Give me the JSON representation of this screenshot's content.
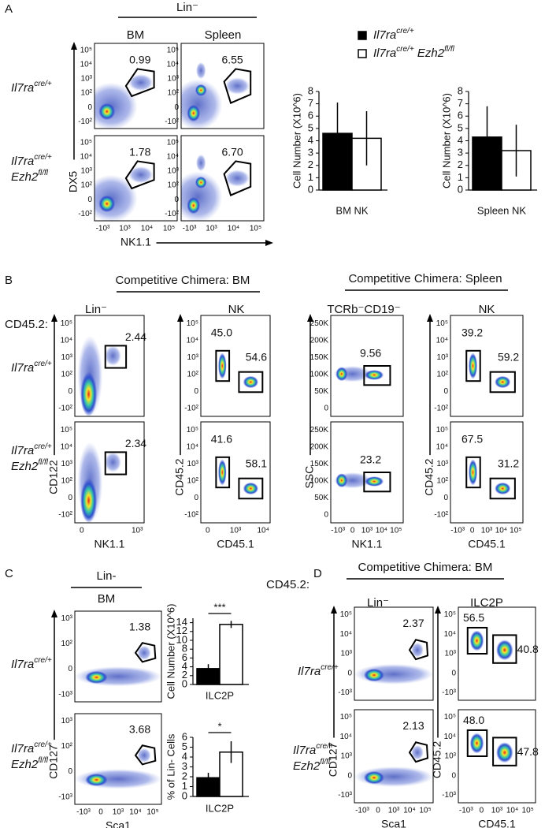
{
  "panel_labels": [
    "A",
    "B",
    "C",
    "D"
  ],
  "headers": [
    "Lin⁻",
    "Competitive Chimera: BM",
    "Competitive Chimera: Spleen",
    "Lin-",
    "Competitive Chimera: BM"
  ],
  "column_titles": [
    "BM",
    "Spleen",
    "Lin⁻",
    "NK",
    "TCRb⁻CD19⁻",
    "NK",
    "BM",
    "Lin⁻",
    "ILC2P"
  ],
  "row_prefix": [
    "CD45.2:",
    "CD45.2:"
  ],
  "legend": [
    [
      [
        "Il7ra",
        "cre/+"
      ]
    ],
    [
      [
        "Il7ra",
        "cre/+"
      ],
      [
        " Ezh2",
        "fl/fl"
      ]
    ]
  ],
  "row_labels": [
    [
      [
        "Il7ra",
        "cre/+"
      ]
    ],
    [
      [
        "Il7ra",
        "cre/+"
      ],
      [
        "Ezh2",
        "fl/fl"
      ]
    ],
    [
      [
        "Il7ra",
        "cre/+"
      ]
    ],
    [
      [
        "Il7ra",
        "cre/+"
      ],
      [
        "Ezh2",
        "fl/fl"
      ]
    ],
    [
      [
        "Il7ra",
        "cre/+"
      ]
    ],
    [
      [
        "Il7ra",
        "cre/+"
      ],
      [
        "Ezh2",
        "fl/fl"
      ]
    ],
    [
      [
        "Il7ra",
        "cre/+"
      ]
    ],
    [
      [
        "Il7ra",
        "cre/+"
      ],
      [
        "Ezh2",
        "fl/fl"
      ]
    ]
  ],
  "flow_columns": [
    {
      "y_label": "DX5",
      "x_label": "NK1.1",
      "yticks": [
        "-10²",
        "0",
        "10²",
        "10³",
        "10⁴",
        "10⁵"
      ],
      "xticks": [
        "-10³",
        "10³",
        "10⁴",
        "10⁵"
      ],
      "plots": [
        {
          "gates": [
            "0.99"
          ]
        },
        {
          "gates": [
            "1.78"
          ]
        }
      ]
    },
    {
      "yticks": [
        "-10²",
        "0",
        "10²",
        "10³",
        "10⁴",
        "10⁵"
      ],
      "xticks": [
        "-10³",
        "10³",
        "10⁴",
        "10⁵"
      ],
      "plots": [
        {
          "gates": [
            "6.55"
          ]
        },
        {
          "gates": [
            "6.70"
          ]
        }
      ]
    },
    {
      "y_label": "CD122",
      "x_label": "NK1.1",
      "yticks": [
        "-10²",
        "0",
        "10²",
        "10³",
        "10⁴",
        "10⁵"
      ],
      "xticks": [
        "0",
        "10³"
      ],
      "plots": [
        {
          "gates": [
            "2.44"
          ]
        },
        {
          "gates": [
            "2.34"
          ]
        }
      ]
    },
    {
      "y_label": "CD45.2",
      "x_label": "CD45.1",
      "yticks": [
        "-10²",
        "0",
        "10²",
        "10³",
        "10⁴",
        "10⁵"
      ],
      "xticks": [
        "0",
        "10³",
        "10⁴"
      ],
      "plots": [
        {
          "gates": [
            "45.0",
            "54.6"
          ]
        },
        {
          "gates": [
            "41.6",
            "58.1"
          ]
        }
      ]
    },
    {
      "y_label": "SSC",
      "x_label": "NK1.1",
      "yticks": [
        "0",
        "50K",
        "100K",
        "150K",
        "200K",
        "250K"
      ],
      "xticks": [
        "-10³",
        "0",
        "10³",
        "10⁴",
        "10⁵"
      ],
      "plots": [
        {
          "gates": [
            "9.56"
          ]
        },
        {
          "gates": [
            "23.2"
          ]
        }
      ]
    },
    {
      "y_label": "CD45.2",
      "x_label": "CD45.1",
      "yticks": [
        "-10²",
        "0",
        "10²",
        "10³",
        "10⁴",
        "10⁵"
      ],
      "xticks": [
        "-10³",
        "0",
        "10³",
        "10⁴",
        "10⁵"
      ],
      "plots": [
        {
          "gates": [
            "39.2",
            "59.2"
          ]
        },
        {
          "gates": [
            "67.5",
            "31.2"
          ]
        }
      ]
    },
    {
      "y_label": "CD127",
      "x_label": "Sca1",
      "yticks": [
        "-10³",
        "0",
        "10²",
        "10³"
      ],
      "xticks": [
        "-10³",
        "0",
        "10³",
        "10⁴",
        "10⁵"
      ],
      "plots": [
        {
          "gates": [
            "1.38"
          ]
        },
        {
          "gates": [
            "3.68"
          ]
        }
      ]
    },
    {
      "y_label": "CD127",
      "x_label": "Sca1",
      "yticks": [
        "-10³",
        "0",
        "10³",
        "10⁴",
        "10⁵"
      ],
      "xticks": [
        "-10³",
        "0",
        "10³",
        "10⁴",
        "10⁵"
      ],
      "plots": [
        {
          "gates": [
            "2.37"
          ]
        },
        {
          "gates": [
            "2.13"
          ]
        }
      ]
    },
    {
      "y_label": "CD45.2",
      "x_label": "CD45.1",
      "yticks": [
        "-10³",
        "0",
        "10³",
        "10⁴",
        "10⁵"
      ],
      "xticks": [
        "-10³",
        "0",
        "10³",
        "10⁴",
        "10⁵"
      ],
      "plots": [
        {
          "gates": [
            "56.5",
            "40.8"
          ]
        },
        {
          "gates": [
            "48.0",
            "47.8"
          ]
        }
      ]
    }
  ],
  "chart_data": [
    {
      "type": "bar",
      "y_label": "Cell Number (X10^6)",
      "categories": [
        "BM NK"
      ],
      "ylim": [
        0,
        8
      ],
      "yticks": [
        0,
        1,
        2,
        3,
        4,
        5,
        6,
        7,
        8
      ],
      "series": [
        {
          "color": "#000000",
          "values": [
            4.6
          ],
          "errors": [
            2.5
          ]
        },
        {
          "color": "#ffffff",
          "values": [
            4.2
          ],
          "errors": [
            2.2
          ]
        }
      ]
    },
    {
      "type": "bar",
      "y_label": "Cell Number (X10^6)",
      "categories": [
        "Spleen NK"
      ],
      "ylim": [
        0,
        8
      ],
      "yticks": [
        0,
        1,
        2,
        3,
        4,
        5,
        6,
        7,
        8
      ],
      "series": [
        {
          "color": "#000000",
          "values": [
            4.3
          ],
          "errors": [
            2.5
          ]
        },
        {
          "color": "#ffffff",
          "values": [
            3.2
          ],
          "errors": [
            2.1
          ]
        }
      ]
    },
    {
      "type": "bar",
      "y_label": "Cell Number (X10^6)",
      "categories": [
        "ILC2P"
      ],
      "ylim": [
        0,
        15
      ],
      "yticks": [
        0,
        2,
        4,
        6,
        8,
        10,
        12,
        14
      ],
      "annotation": "***",
      "series": [
        {
          "color": "#000000",
          "values": [
            3.6
          ],
          "errors": [
            1.0
          ]
        },
        {
          "color": "#ffffff",
          "values": [
            13.6
          ],
          "errors": [
            0.8
          ]
        }
      ]
    },
    {
      "type": "bar",
      "y_label": "% of Lin- Cells",
      "categories": [
        "ILC2P"
      ],
      "ylim": [
        0,
        6
      ],
      "yticks": [
        0,
        1,
        2,
        3,
        4,
        5,
        6
      ],
      "annotation": "*",
      "series": [
        {
          "color": "#000000",
          "values": [
            1.9
          ],
          "errors": [
            0.5
          ]
        },
        {
          "color": "#ffffff",
          "values": [
            4.5
          ],
          "errors": [
            1.1
          ]
        }
      ]
    }
  ]
}
